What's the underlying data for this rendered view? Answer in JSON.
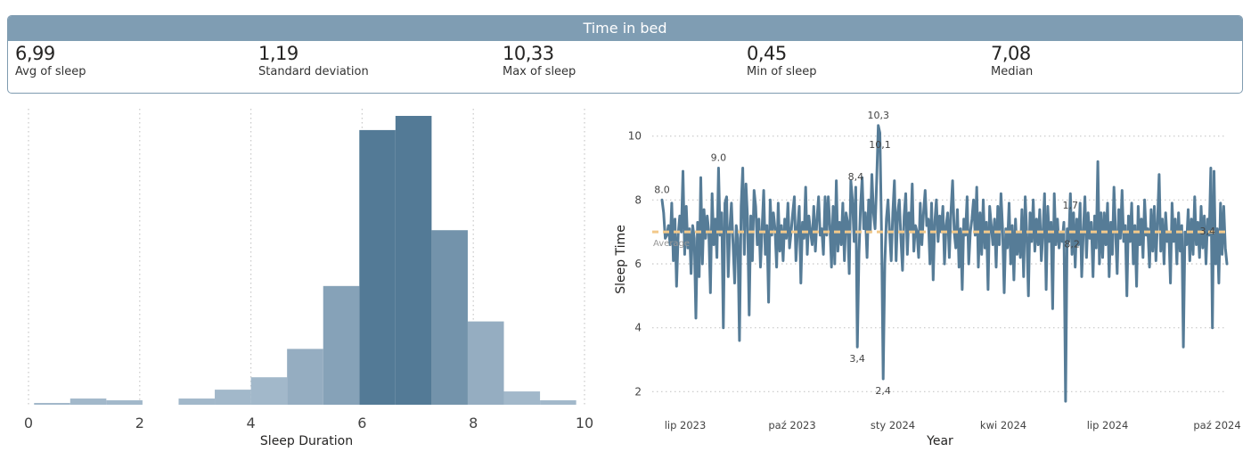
{
  "header": {
    "title": "Time in bed"
  },
  "kpis": [
    {
      "value": "6,99",
      "label": "Avg of sleep"
    },
    {
      "value": "1,19",
      "label": "Standard deviation"
    },
    {
      "value": "10,33",
      "label": "Max of sleep"
    },
    {
      "value": "0,45",
      "label": "Min of sleep"
    },
    {
      "value": "7,08",
      "label": "Median"
    }
  ],
  "colors": {
    "header": "#7f9db3",
    "dark": "#537a96",
    "line": "#567c97",
    "avg": "#f2c98a",
    "grid": "#c8c8c8"
  },
  "chart_data": [
    {
      "type": "bar",
      "subtype": "histogram",
      "xlabel": "Sleep Duration",
      "ylabel": "",
      "xlim": [
        0,
        10
      ],
      "xticks": [
        "0",
        "2",
        "4",
        "6",
        "8",
        "10"
      ],
      "grid": "vertical dotted",
      "bins": [
        {
          "x0": 0.1,
          "x1": 0.75,
          "value": 2
        },
        {
          "x0": 0.75,
          "x1": 1.4,
          "value": 7
        },
        {
          "x0": 1.4,
          "x1": 2.05,
          "value": 5
        },
        {
          "x0": 2.05,
          "x1": 2.7,
          "value": 0
        },
        {
          "x0": 2.7,
          "x1": 3.35,
          "value": 7
        },
        {
          "x0": 3.35,
          "x1": 4.0,
          "value": 17
        },
        {
          "x0": 4.0,
          "x1": 4.65,
          "value": 31
        },
        {
          "x0": 4.65,
          "x1": 5.3,
          "value": 63
        },
        {
          "x0": 5.3,
          "x1": 5.95,
          "value": 134
        },
        {
          "x0": 5.95,
          "x1": 6.6,
          "value": 310
        },
        {
          "x0": 6.6,
          "x1": 7.25,
          "value": 326
        },
        {
          "x0": 7.25,
          "x1": 7.9,
          "value": 197
        },
        {
          "x0": 7.9,
          "x1": 8.55,
          "value": 94
        },
        {
          "x0": 8.55,
          "x1": 9.2,
          "value": 15
        },
        {
          "x0": 9.2,
          "x1": 9.85,
          "value": 5
        }
      ]
    },
    {
      "type": "line",
      "xlabel": "Year",
      "ylabel": "Sleep Time",
      "ylim": [
        1.2,
        10.8
      ],
      "yticks": [
        "2",
        "4",
        "6",
        "8",
        "10"
      ],
      "xticks": [
        "lip 2023",
        "paź 2023",
        "sty 2024",
        "kwi 2024",
        "lip 2024",
        "paź 2024"
      ],
      "average_line": {
        "label": "Average",
        "value": 7.0
      },
      "series": [
        {
          "values": [
            8.0,
            7.6,
            6.8,
            6.9,
            7.2,
            6.6,
            7.9,
            6.1,
            7.4,
            5.3,
            6.9,
            7.5,
            7.0,
            8.9,
            6.3,
            7.8,
            6.5,
            7.1,
            5.7,
            7.2,
            6.8,
            4.3,
            7.3,
            5.6,
            8.7,
            6.0,
            7.7,
            6.8,
            7.5,
            7.0,
            5.1,
            8.2,
            6.6,
            7.4,
            6.2,
            9.0,
            6.9,
            7.6,
            4.0,
            7.9,
            8.1,
            5.6,
            7.1,
            7.9,
            6.6,
            5.4,
            7.2,
            6.8,
            3.6,
            7.8,
            9.0,
            6.3,
            8.5,
            7.4,
            4.4,
            7.5,
            6.1,
            8.3,
            7.8,
            6.6,
            7.4,
            5.9,
            7.1,
            8.3,
            6.3,
            7.2,
            4.8,
            8.0,
            6.9,
            7.6,
            7.1,
            5.9,
            7.9,
            6.4,
            7.2,
            6.1,
            7.4,
            6.8,
            7.9,
            6.5,
            7.0,
            7.6,
            8.1,
            6.1,
            7.1,
            7.8,
            5.4,
            7.3,
            6.8,
            8.4,
            6.3,
            7.5,
            7.0,
            6.6,
            7.8,
            6.4,
            7.4,
            8.1,
            6.9,
            7.1,
            6.3,
            8.1,
            6.9,
            8.1,
            7.2,
            5.9,
            7.8,
            6.0,
            8.6,
            6.4,
            7.3,
            6.6,
            7.9,
            6.1,
            7.6,
            7.3,
            5.7,
            8.6,
            8.0,
            6.7,
            8.4,
            3.4,
            6.3,
            7.8,
            8.7,
            7.1,
            7.6,
            6.2,
            8.0,
            7.0,
            8.8,
            7.6,
            7.1,
            8.6,
            10.33,
            10.1,
            6.9,
            2.4,
            6.0,
            7.4,
            8.0,
            7.0,
            6.1,
            7.6,
            8.6,
            6.1,
            7.6,
            8.0,
            6.8,
            5.8,
            7.5,
            8.2,
            6.3,
            7.6,
            7.0,
            8.5,
            6.4,
            7.2,
            7.0,
            6.2,
            7.9,
            6.6,
            7.6,
            8.3,
            7.2,
            7.4,
            6.0,
            7.9,
            5.5,
            7.3,
            8.0,
            6.7,
            7.5,
            7.0,
            7.8,
            6.0,
            7.2,
            7.6,
            6.2,
            7.6,
            8.6,
            7.0,
            6.5,
            7.7,
            5.9,
            7.1,
            5.2,
            7.4,
            6.9,
            8.1,
            6.0,
            7.0,
            7.4,
            8.0,
            6.9,
            8.4,
            5.9,
            7.6,
            6.3,
            8.0,
            6.5,
            7.3,
            5.2,
            7.8,
            7.2,
            6.6,
            7.4,
            5.9,
            7.8,
            6.6,
            8.2,
            7.1,
            5.1,
            7.1,
            6.5,
            7.9,
            6.0,
            7.2,
            5.5,
            7.4,
            6.3,
            7.0,
            6.2,
            7.7,
            5.6,
            8.1,
            6.9,
            5.0,
            7.6,
            6.7,
            8.0,
            6.4,
            7.4,
            6.6,
            7.7,
            6.1,
            7.0,
            8.2,
            5.2,
            7.8,
            6.7,
            7.3,
            4.6,
            8.2,
            6.6,
            7.4,
            6.5,
            7.0,
            6.7,
            7.3,
            1.7,
            7.1,
            6.7,
            8.2,
            6.3,
            7.6,
            5.9,
            7.4,
            6.6,
            7.9,
            5.6,
            7.0,
            8.1,
            6.2,
            7.6,
            6.8,
            7.3,
            5.6,
            7.5,
            6.5,
            9.2,
            6.0,
            7.6,
            6.2,
            7.6,
            6.6,
            7.9,
            5.6,
            7.3,
            6.3,
            8.4,
            7.0,
            5.7,
            7.7,
            6.8,
            8.3,
            6.7,
            7.2,
            5.0,
            7.5,
            6.7,
            7.9,
            6.0,
            7.2,
            5.3,
            7.8,
            6.6,
            7.4,
            6.2,
            8.0,
            6.9,
            7.1,
            5.9,
            7.7,
            6.4,
            7.8,
            6.1,
            7.3,
            8.8,
            6.4,
            7.4,
            6.0,
            7.6,
            6.7,
            7.0,
            5.4,
            7.9,
            6.7,
            7.4,
            6.0,
            7.6,
            6.4,
            7.2,
            3.4,
            7.0,
            6.6,
            7.7,
            6.1,
            7.4,
            6.3,
            8.1,
            6.6,
            7.3,
            6.2,
            7.8,
            6.5,
            7.5,
            6.0,
            7.4,
            6.9,
            9.0,
            4.0,
            8.9,
            6.0,
            7.1,
            5.4,
            7.9,
            6.3,
            7.8,
            6.5,
            6.0
          ],
          "labels": [
            {
              "i": 0,
              "text": "8.0",
              "pos": "above"
            },
            {
              "i": 35,
              "text": "9.0",
              "pos": "above"
            },
            {
              "i": 121,
              "text": "3,4",
              "pos": "below"
            },
            {
              "i": 120,
              "text": "8,4",
              "pos": "above"
            },
            {
              "i": 134,
              "text": "10,3",
              "pos": "above"
            },
            {
              "i": 135,
              "text": "10,1",
              "pos": "below"
            },
            {
              "i": 137,
              "text": "2,4",
              "pos": "below"
            },
            {
              "i": 253,
              "text": "1,7",
              "pos": "below"
            },
            {
              "i": 254,
              "text": "8,2",
              "pos": "above"
            },
            {
              "i": 338,
              "text": "3,4",
              "pos": "below"
            },
            {
              "i": 369,
              "text": "6,0",
              "pos": "below"
            }
          ]
        }
      ]
    }
  ]
}
